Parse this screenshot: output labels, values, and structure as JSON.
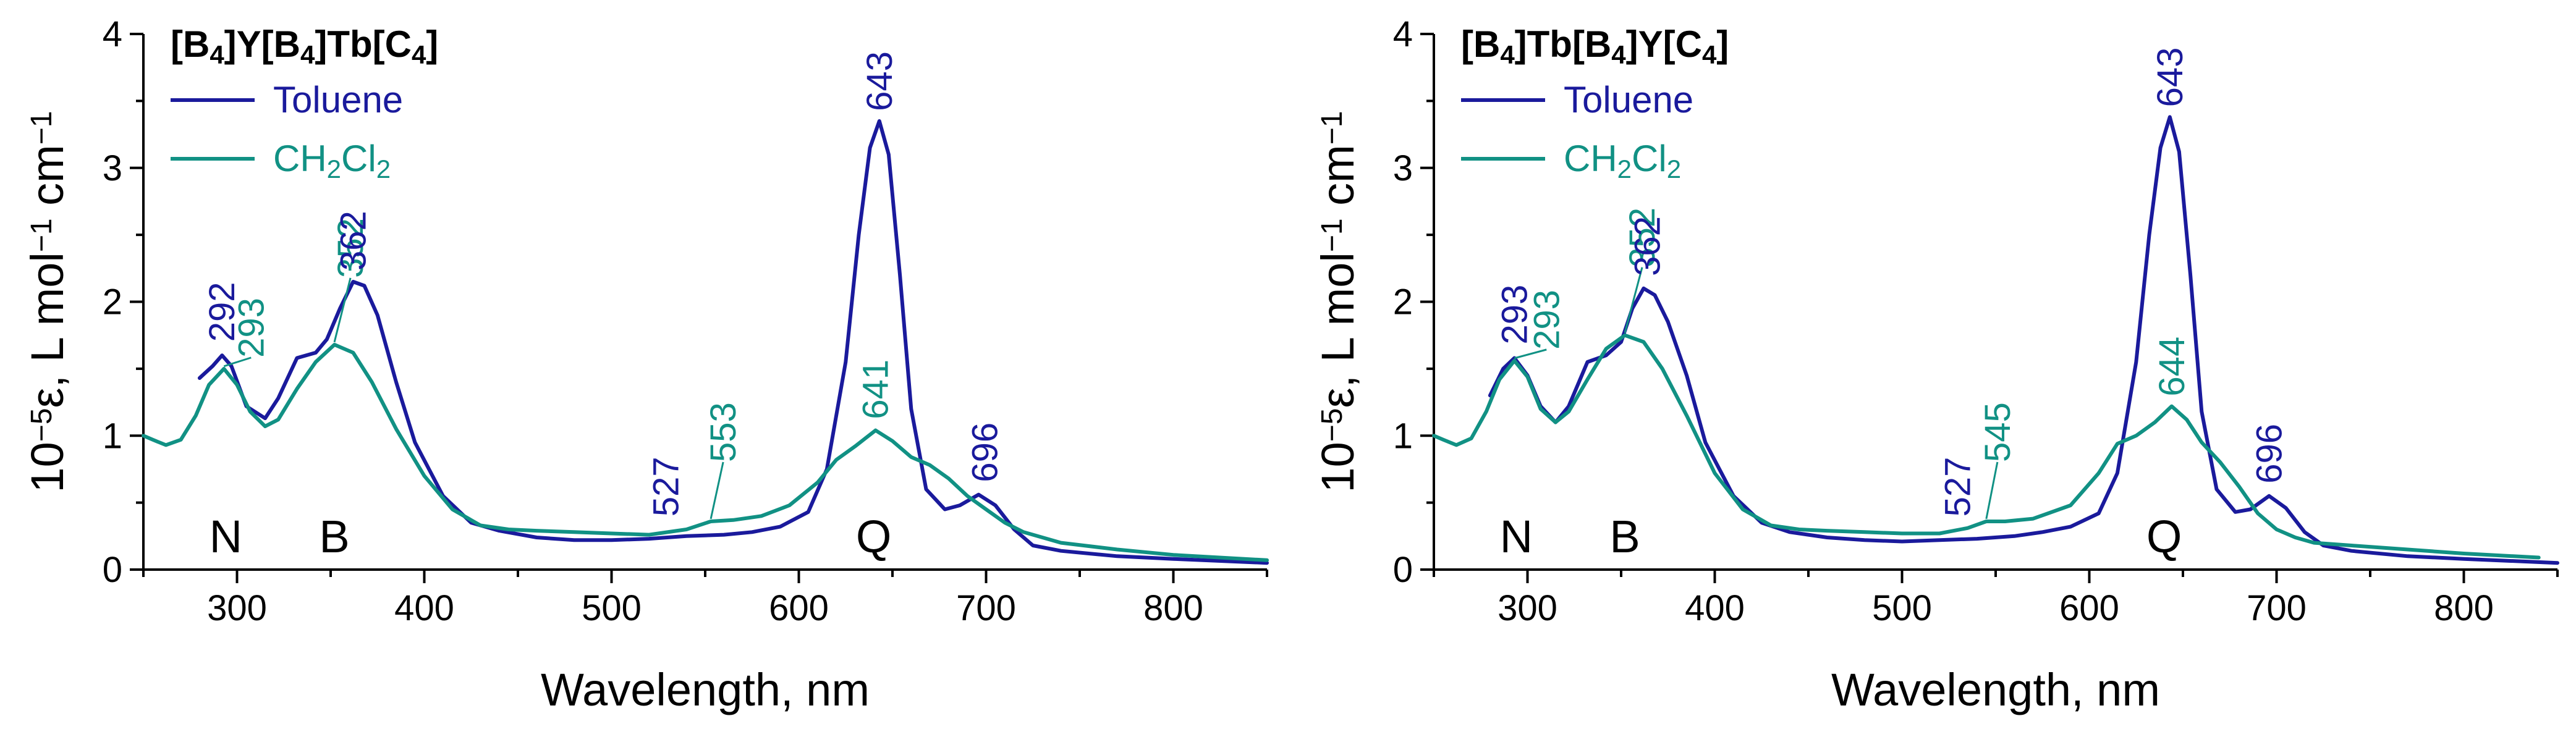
{
  "colors": {
    "toluene": "#1a1a9c",
    "ch2cl2": "#119184",
    "axis": "#000000"
  },
  "chart_data": [
    {
      "type": "line",
      "title": "[B4]Y[B4]Tb[C4]",
      "title_parts": [
        {
          "t": "[B",
          "sub": false
        },
        {
          "t": "4",
          "sub": true
        },
        {
          "t": "]Y[B",
          "sub": false
        },
        {
          "t": "4",
          "sub": true
        },
        {
          "t": "]Tb[C",
          "sub": false
        },
        {
          "t": "4",
          "sub": true
        },
        {
          "t": "]",
          "sub": false
        }
      ],
      "xlabel": "Wavelength, nm",
      "ylabel_parts": [
        {
          "t": "10",
          "sup": false
        },
        {
          "t": "−5",
          "sup": true
        },
        {
          "t": "ε, L mol",
          "sup": false
        },
        {
          "t": "−1",
          "sup": true
        },
        {
          "t": " cm",
          "sup": false
        },
        {
          "t": "−1",
          "sup": true
        }
      ],
      "xlim": [
        250,
        850
      ],
      "ylim": [
        0,
        4
      ],
      "xticks": [
        300,
        400,
        500,
        600,
        700,
        800
      ],
      "yticks": [
        0,
        1,
        2,
        3,
        4
      ],
      "series": [
        {
          "name": "Toluene",
          "name_parts": [
            {
              "t": "Toluene",
              "sub": false
            }
          ],
          "color_key": "toluene",
          "x": [
            280,
            287,
            292,
            297,
            305,
            315,
            322,
            332,
            342,
            348,
            355,
            362,
            368,
            375,
            385,
            395,
            410,
            425,
            440,
            460,
            480,
            500,
            520,
            540,
            560,
            575,
            590,
            605,
            615,
            625,
            632,
            638,
            643,
            648,
            654,
            660,
            668,
            678,
            686,
            696,
            705,
            715,
            725,
            740,
            770,
            800,
            850
          ],
          "y": [
            1.43,
            1.52,
            1.6,
            1.52,
            1.22,
            1.13,
            1.28,
            1.58,
            1.62,
            1.72,
            1.95,
            2.15,
            2.12,
            1.9,
            1.4,
            0.95,
            0.55,
            0.35,
            0.29,
            0.24,
            0.22,
            0.22,
            0.23,
            0.25,
            0.26,
            0.28,
            0.32,
            0.43,
            0.75,
            1.55,
            2.5,
            3.15,
            3.35,
            3.1,
            2.2,
            1.2,
            0.6,
            0.45,
            0.48,
            0.56,
            0.48,
            0.3,
            0.18,
            0.14,
            0.1,
            0.08,
            0.05
          ]
        },
        {
          "name": "CH2Cl2",
          "name_parts": [
            {
              "t": "CH",
              "sub": false
            },
            {
              "t": "2",
              "sub": true
            },
            {
              "t": "Cl",
              "sub": false
            },
            {
              "t": "2",
              "sub": true
            }
          ],
          "color_key": "ch2cl2",
          "x": [
            250,
            255,
            262,
            270,
            278,
            285,
            293,
            300,
            307,
            315,
            322,
            332,
            342,
            352,
            362,
            372,
            385,
            400,
            415,
            430,
            445,
            460,
            480,
            500,
            520,
            540,
            553,
            565,
            580,
            595,
            610,
            620,
            630,
            641,
            650,
            660,
            670,
            680,
            690,
            700,
            710,
            720,
            740,
            770,
            800,
            850
          ],
          "y": [
            1.0,
            0.97,
            0.93,
            0.97,
            1.15,
            1.38,
            1.5,
            1.38,
            1.18,
            1.07,
            1.12,
            1.35,
            1.55,
            1.68,
            1.62,
            1.4,
            1.05,
            0.7,
            0.45,
            0.33,
            0.3,
            0.29,
            0.28,
            0.27,
            0.26,
            0.3,
            0.36,
            0.37,
            0.4,
            0.48,
            0.65,
            0.82,
            0.92,
            1.04,
            0.96,
            0.84,
            0.78,
            0.68,
            0.55,
            0.45,
            0.35,
            0.28,
            0.2,
            0.15,
            0.11,
            0.07
          ]
        }
      ],
      "peak_labels": [
        {
          "text": "292",
          "series": 0,
          "x": 292,
          "y": 1.6
        },
        {
          "text": "293",
          "series": 1,
          "x": 293,
          "y": 1.5
        },
        {
          "text": "352",
          "series": 1,
          "x": 352,
          "y": 1.68
        },
        {
          "text": "362",
          "series": 0,
          "x": 362,
          "y": 2.15
        },
        {
          "text": "527",
          "series": 0,
          "x": 527,
          "y": 0.23
        },
        {
          "text": "553",
          "series": 1,
          "x": 553,
          "y": 0.36
        },
        {
          "text": "641",
          "series": 1,
          "x": 641,
          "y": 1.04
        },
        {
          "text": "643",
          "series": 0,
          "x": 643,
          "y": 3.35
        },
        {
          "text": "696",
          "series": 0,
          "x": 696,
          "y": 0.56
        }
      ],
      "band_labels": [
        {
          "text": "N",
          "x": 294,
          "y": 0.25
        },
        {
          "text": "B",
          "x": 352,
          "y": 0.25
        },
        {
          "text": "Q",
          "x": 640,
          "y": 0.25
        }
      ]
    },
    {
      "type": "line",
      "title": "[B4]Tb[B4]Y[C4]",
      "title_parts": [
        {
          "t": "[B",
          "sub": false
        },
        {
          "t": "4",
          "sub": true
        },
        {
          "t": "]Tb[B",
          "sub": false
        },
        {
          "t": "4",
          "sub": true
        },
        {
          "t": "]Y[C",
          "sub": false
        },
        {
          "t": "4",
          "sub": true
        },
        {
          "t": "]",
          "sub": false
        }
      ],
      "xlabel": "Wavelength, nm",
      "ylabel_parts": [
        {
          "t": "10",
          "sup": false
        },
        {
          "t": "−5",
          "sup": true
        },
        {
          "t": "ε, L mol",
          "sup": false
        },
        {
          "t": "−1",
          "sup": true
        },
        {
          "t": " cm",
          "sup": false
        },
        {
          "t": "−1",
          "sup": true
        }
      ],
      "xlim": [
        250,
        850
      ],
      "ylim": [
        0,
        4
      ],
      "xticks": [
        300,
        400,
        500,
        600,
        700,
        800
      ],
      "yticks": [
        0,
        1,
        2,
        3,
        4
      ],
      "series": [
        {
          "name": "Toluene",
          "name_parts": [
            {
              "t": "Toluene",
              "sub": false
            }
          ],
          "color_key": "toluene",
          "x": [
            280,
            287,
            293,
            300,
            307,
            315,
            322,
            332,
            342,
            350,
            356,
            362,
            368,
            375,
            385,
            395,
            410,
            425,
            440,
            460,
            480,
            500,
            520,
            540,
            560,
            575,
            590,
            605,
            615,
            625,
            632,
            638,
            643,
            648,
            654,
            660,
            668,
            678,
            686,
            696,
            705,
            715,
            725,
            740,
            770,
            800,
            850
          ],
          "y": [
            1.3,
            1.5,
            1.58,
            1.45,
            1.22,
            1.1,
            1.22,
            1.55,
            1.6,
            1.7,
            1.95,
            2.1,
            2.05,
            1.85,
            1.45,
            0.95,
            0.55,
            0.35,
            0.28,
            0.24,
            0.22,
            0.21,
            0.22,
            0.23,
            0.25,
            0.28,
            0.32,
            0.42,
            0.72,
            1.55,
            2.5,
            3.15,
            3.38,
            3.12,
            2.2,
            1.18,
            0.6,
            0.43,
            0.45,
            0.55,
            0.46,
            0.28,
            0.18,
            0.14,
            0.1,
            0.08,
            0.05
          ]
        },
        {
          "name": "CH2Cl2",
          "name_parts": [
            {
              "t": "CH",
              "sub": false
            },
            {
              "t": "2",
              "sub": true
            },
            {
              "t": "Cl",
              "sub": false
            },
            {
              "t": "2",
              "sub": true
            }
          ],
          "color_key": "ch2cl2",
          "x": [
            250,
            255,
            262,
            270,
            278,
            285,
            293,
            300,
            307,
            315,
            322,
            332,
            342,
            352,
            362,
            372,
            385,
            400,
            415,
            430,
            445,
            460,
            480,
            500,
            520,
            535,
            545,
            555,
            570,
            590,
            605,
            615,
            625,
            635,
            644,
            652,
            660,
            670,
            680,
            690,
            700,
            710,
            720,
            740,
            770,
            800,
            840
          ],
          "y": [
            1.0,
            0.97,
            0.93,
            0.98,
            1.18,
            1.42,
            1.56,
            1.44,
            1.2,
            1.1,
            1.18,
            1.42,
            1.65,
            1.75,
            1.7,
            1.5,
            1.15,
            0.72,
            0.45,
            0.33,
            0.3,
            0.29,
            0.28,
            0.27,
            0.27,
            0.31,
            0.36,
            0.36,
            0.38,
            0.48,
            0.72,
            0.94,
            1.0,
            1.1,
            1.22,
            1.12,
            0.95,
            0.8,
            0.62,
            0.42,
            0.3,
            0.24,
            0.2,
            0.18,
            0.15,
            0.12,
            0.09
          ]
        }
      ],
      "peak_labels": [
        {
          "text": "293",
          "series": 0,
          "x": 293,
          "y": 1.58
        },
        {
          "text": "293",
          "series": 1,
          "x": 293,
          "y": 1.56
        },
        {
          "text": "352",
          "series": 1,
          "x": 352,
          "y": 1.75
        },
        {
          "text": "362",
          "series": 0,
          "x": 362,
          "y": 2.1
        },
        {
          "text": "527",
          "series": 0,
          "x": 527,
          "y": 0.22
        },
        {
          "text": "545",
          "series": 1,
          "x": 545,
          "y": 0.36
        },
        {
          "text": "643",
          "series": 0,
          "x": 643,
          "y": 3.38
        },
        {
          "text": "644",
          "series": 1,
          "x": 644,
          "y": 1.22
        },
        {
          "text": "696",
          "series": 0,
          "x": 696,
          "y": 0.55
        }
      ],
      "band_labels": [
        {
          "text": "N",
          "x": 294,
          "y": 0.25
        },
        {
          "text": "B",
          "x": 352,
          "y": 0.25
        },
        {
          "text": "Q",
          "x": 640,
          "y": 0.25
        }
      ]
    }
  ]
}
